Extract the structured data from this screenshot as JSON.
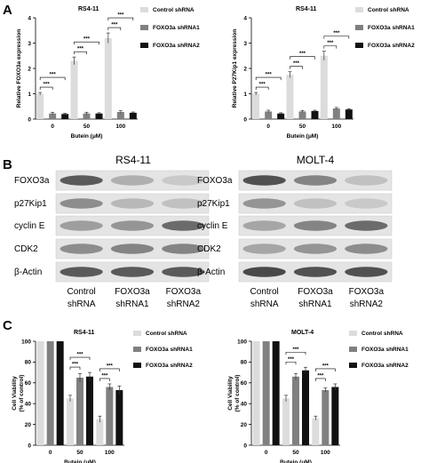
{
  "figure": {
    "panel_letters": [
      "A",
      "B",
      "C"
    ]
  },
  "chart_data": [
    {
      "id": "A-left",
      "type": "bar",
      "title": "RS4-11",
      "xlabel": "Butein (μM)",
      "ylabel": "Relative FOXO3a expression",
      "categories": [
        "0",
        "50",
        "100"
      ],
      "ylim": [
        0,
        4
      ],
      "yticks": [
        "0",
        "1",
        "2",
        "3",
        "4"
      ],
      "series": [
        {
          "name": "Control shRNA",
          "color": "#dcdcdc",
          "values": [
            1.0,
            2.3,
            3.2
          ],
          "errors": [
            0.05,
            0.15,
            0.2
          ]
        },
        {
          "name": "FOXO3a shRNA1",
          "color": "#808080",
          "values": [
            0.22,
            0.22,
            0.28
          ],
          "errors": [
            0.05,
            0.05,
            0.05
          ]
        },
        {
          "name": "FOXO3a shRNA2",
          "color": "#111111",
          "values": [
            0.2,
            0.22,
            0.25
          ],
          "errors": [
            0.03,
            0.03,
            0.03
          ]
        }
      ],
      "significance": [
        "***",
        "***",
        "***",
        "***",
        "***",
        "***"
      ]
    },
    {
      "id": "A-right",
      "type": "bar",
      "title": "RS4-11",
      "xlabel": "Butein (μM)",
      "ylabel": "Relative P27Kip1 expression",
      "categories": [
        "0",
        "50",
        "100"
      ],
      "ylim": [
        0,
        4
      ],
      "yticks": [
        "0",
        "1",
        "2",
        "3",
        "4"
      ],
      "series": [
        {
          "name": "Control shRNA",
          "color": "#dcdcdc",
          "values": [
            1.0,
            1.75,
            2.5
          ],
          "errors": [
            0.05,
            0.12,
            0.18
          ]
        },
        {
          "name": "FOXO3a shRNA1",
          "color": "#808080",
          "values": [
            0.3,
            0.3,
            0.42
          ],
          "errors": [
            0.05,
            0.04,
            0.04
          ]
        },
        {
          "name": "FOXO3a shRNA2",
          "color": "#111111",
          "values": [
            0.22,
            0.32,
            0.38
          ],
          "errors": [
            0.03,
            0.03,
            0.03
          ]
        }
      ],
      "significance": [
        "***",
        "***",
        "***",
        "***",
        "***",
        "***"
      ]
    },
    {
      "id": "C-left",
      "type": "bar",
      "title": "RS4-11",
      "xlabel": "Butein (μM)",
      "ylabel": "Cell Viability (% of control)",
      "categories": [
        "0",
        "50",
        "100"
      ],
      "ylim": [
        0,
        100
      ],
      "yticks": [
        "0",
        "20",
        "40",
        "60",
        "80",
        "100"
      ],
      "series": [
        {
          "name": "Control shRNA",
          "color": "#dcdcdc",
          "values": [
            100,
            45,
            25
          ],
          "errors": [
            0,
            3,
            3
          ]
        },
        {
          "name": "FOXO3a shRNA1",
          "color": "#808080",
          "values": [
            100,
            65,
            56
          ],
          "errors": [
            0,
            4,
            3
          ]
        },
        {
          "name": "FOXO3a shRNA2",
          "color": "#111111",
          "values": [
            100,
            66,
            53
          ],
          "errors": [
            0,
            4,
            4
          ]
        }
      ],
      "significance": [
        "***",
        "***",
        "***",
        "***"
      ]
    },
    {
      "id": "C-right",
      "type": "bar",
      "title": "MOLT-4",
      "xlabel": "Butein (μM)",
      "ylabel": "Cell Viability (% of control)",
      "categories": [
        "0",
        "50",
        "100"
      ],
      "ylim": [
        0,
        100
      ],
      "yticks": [
        "0",
        "20",
        "40",
        "60",
        "80",
        "100"
      ],
      "series": [
        {
          "name": "Control shRNA",
          "color": "#dcdcdc",
          "values": [
            100,
            45,
            26
          ],
          "errors": [
            0,
            3,
            2
          ]
        },
        {
          "name": "FOXO3a shRNA1",
          "color": "#808080",
          "values": [
            100,
            66,
            53
          ],
          "errors": [
            0,
            3,
            2
          ]
        },
        {
          "name": "FOXO3a shRNA2",
          "color": "#111111",
          "values": [
            100,
            72,
            56
          ],
          "errors": [
            0,
            3,
            3
          ]
        }
      ],
      "significance": [
        "***",
        "***",
        "***",
        "***"
      ]
    }
  ],
  "western": {
    "blots": [
      {
        "title": "RS4-11",
        "lanes": [
          [
            "Control",
            "shRNA"
          ],
          [
            "FOXO3a",
            "shRNA1"
          ],
          [
            "FOXO3a",
            "shRNA2"
          ]
        ]
      },
      {
        "title": "MOLT-4",
        "lanes": [
          [
            "Control",
            "shRNA"
          ],
          [
            "FOXO3a",
            "shRNA1"
          ],
          [
            "FOXO3a",
            "shRNA2"
          ]
        ]
      }
    ],
    "rows": [
      "FOXO3a",
      "p27Kip1",
      "cyclin E",
      "CDK2",
      "β-Actin"
    ]
  }
}
